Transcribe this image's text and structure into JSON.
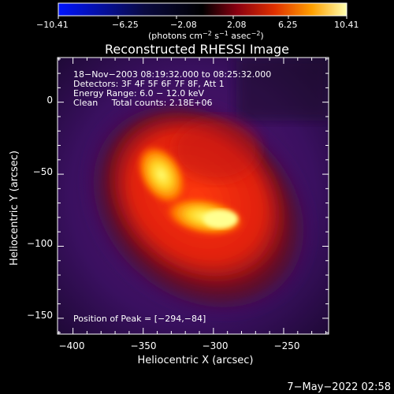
{
  "colorbar": {
    "tick_labels": [
      "−10.41",
      "−6.25",
      "−2.08",
      "2.08",
      "6.25",
      "10.41"
    ],
    "unit_main": "(photons cm",
    "unit_exp1": "−2",
    "unit_mid": " s",
    "unit_exp2": "−1",
    "unit_mid2": " asec",
    "unit_exp3": "−2",
    "unit_end": ")"
  },
  "image": {
    "title": "Reconstructed RHESSI Image",
    "info_line1": "18−Nov−2003 08:19:32.000 to 08:25:32.000",
    "info_line2": "Detectors: 3F 4F 5F 6F 7F 8F, Att 1",
    "info_line3": "Energy Range: 6.0 − 12.0 keV",
    "info_line4": "Clean     Total counts: 2.18E+06",
    "peak_text": "Position of Peak = [−294,−84]",
    "peak_position": [
      -294,
      -84
    ]
  },
  "axes": {
    "xlabel": "Heliocentric X (arcsec)",
    "ylabel": "Heliocentric Y (arcsec)",
    "xticks": [
      "−400",
      "−350",
      "−300",
      "−250"
    ],
    "yticks": [
      "0",
      "−50",
      "−100",
      "−150"
    ],
    "xtick_values": [
      -400,
      -350,
      -300,
      -250
    ],
    "ytick_values": [
      0,
      -50,
      -100,
      -150
    ],
    "xlim": [
      -411,
      -218
    ],
    "ylim": [
      -161,
      31
    ]
  },
  "footer": {
    "date": "7−May−2022 02:58"
  },
  "colors": {
    "background": "#000000",
    "foreground": "#ffffff",
    "cmap": [
      "#0000ff",
      "#000000",
      "#3a1a6a",
      "#7a0a2a",
      "#c01010",
      "#ff5a00",
      "#ffb000",
      "#ffff60",
      "#ffffff"
    ]
  }
}
